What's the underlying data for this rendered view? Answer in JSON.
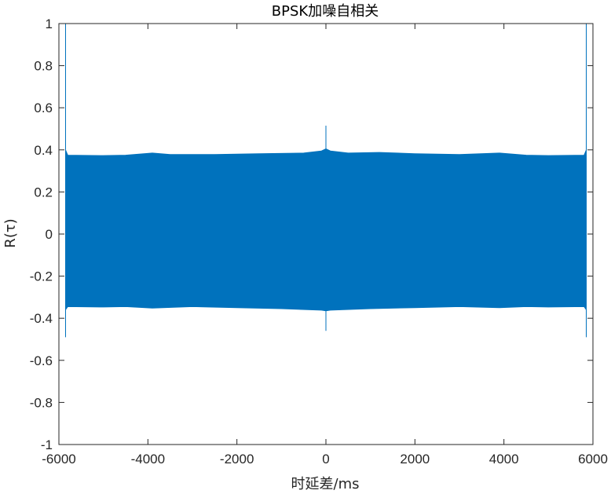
{
  "chart_data": {
    "type": "line",
    "title": "BPSK加噪自相关",
    "xlabel": "时延差/ms",
    "ylabel": "R(τ)",
    "xlim": [
      -6000,
      6000
    ],
    "ylim": [
      -1,
      1
    ],
    "xticks": [
      -6000,
      -4000,
      -2000,
      0,
      2000,
      4000,
      6000
    ],
    "xtick_labels": [
      "-6000",
      "-4000",
      "-2000",
      "0",
      "2000",
      "4000",
      "6000"
    ],
    "yticks": [
      -1,
      -0.8,
      -0.6,
      -0.4,
      -0.2,
      0,
      0.2,
      0.4,
      0.6,
      0.8,
      1
    ],
    "ytick_labels": [
      "-1",
      "-0.8",
      "-0.6",
      "-0.4",
      "-0.2",
      "0",
      "0.2",
      "0.4",
      "0.6",
      "0.8",
      "1"
    ],
    "grid": false,
    "legend": "none",
    "series": [
      {
        "color": "#0072BD",
        "x_range": [
          -5850,
          5850
        ],
        "envelope_upper": [
          [
            -5850,
            0.4
          ],
          [
            -5800,
            0.375
          ],
          [
            -5000,
            0.373
          ],
          [
            -4500,
            0.375
          ],
          [
            -3900,
            0.385
          ],
          [
            -3500,
            0.378
          ],
          [
            -2500,
            0.378
          ],
          [
            -1500,
            0.382
          ],
          [
            -500,
            0.385
          ],
          [
            -100,
            0.395
          ],
          [
            0,
            0.405
          ],
          [
            100,
            0.395
          ],
          [
            500,
            0.385
          ],
          [
            1200,
            0.388
          ],
          [
            2000,
            0.382
          ],
          [
            3000,
            0.378
          ],
          [
            3900,
            0.385
          ],
          [
            4500,
            0.375
          ],
          [
            5000,
            0.373
          ],
          [
            5800,
            0.375
          ],
          [
            5850,
            0.4
          ]
        ],
        "envelope_lower": [
          [
            -5850,
            -0.36
          ],
          [
            -5800,
            -0.345
          ],
          [
            -5000,
            -0.347
          ],
          [
            -4500,
            -0.345
          ],
          [
            -3900,
            -0.352
          ],
          [
            -3000,
            -0.345
          ],
          [
            -2000,
            -0.35
          ],
          [
            -1000,
            -0.355
          ],
          [
            -100,
            -0.362
          ],
          [
            0,
            -0.365
          ],
          [
            100,
            -0.362
          ],
          [
            1000,
            -0.355
          ],
          [
            2000,
            -0.35
          ],
          [
            3000,
            -0.345
          ],
          [
            3900,
            -0.35
          ],
          [
            4500,
            -0.345
          ],
          [
            5000,
            -0.347
          ],
          [
            5800,
            -0.345
          ],
          [
            5850,
            -0.36
          ]
        ],
        "spikes": [
          {
            "x": -5850,
            "max": 1.0,
            "min": -0.49
          },
          {
            "x": 0,
            "max": 0.515,
            "min": -0.46
          },
          {
            "x": 5850,
            "max": 1.0,
            "min": -0.49
          }
        ]
      }
    ]
  }
}
